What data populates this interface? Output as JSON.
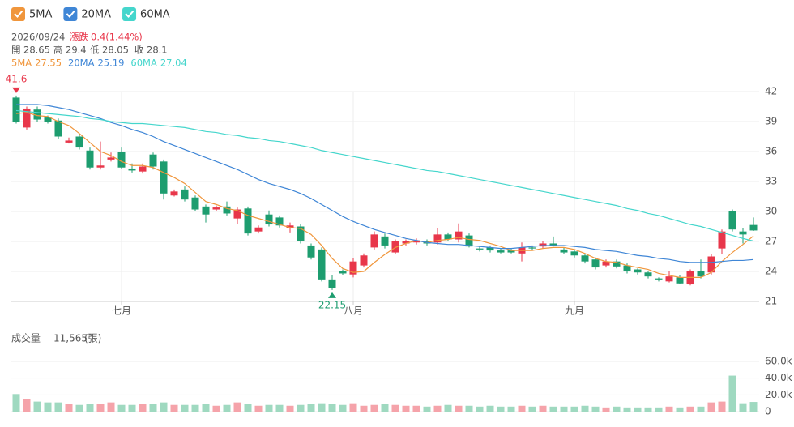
{
  "info": {
    "date": "2026/09/24",
    "change_label": "漲跌",
    "change": "0.4(1.44%)",
    "open_label": "開",
    "high_label": "高",
    "low_label": "低",
    "close_label": "收",
    "volume_label": "成交量",
    "volume": "11,565",
    "volume_unit": "(張)"
  },
  "chart_data": [
    {
      "type": "candlestick",
      "categories": [
        null,
        null,
        null,
        null,
        null,
        null,
        null,
        null,
        null,
        null,
        "七月",
        null,
        null,
        null,
        null,
        null,
        null,
        null,
        null,
        null,
        null,
        null,
        null,
        null,
        null,
        null,
        null,
        null,
        null,
        null,
        null,
        null,
        "八月",
        null,
        null,
        null,
        null,
        null,
        null,
        null,
        null,
        null,
        null,
        null,
        null,
        null,
        null,
        null,
        null,
        null,
        null,
        null,
        null,
        "九月",
        null,
        null,
        null,
        null,
        null,
        null,
        null,
        null,
        null,
        null,
        null,
        null,
        null,
        null,
        null,
        null,
        null
      ],
      "open": [
        41.4,
        38.4,
        40.2,
        39.4,
        39.1,
        36.9,
        37.5,
        36.1,
        34.4,
        35.2,
        36.0,
        34.3,
        34.0,
        35.7,
        35.0,
        31.6,
        32.2,
        31.4,
        30.5,
        30.2,
        30.5,
        29.3,
        30.3,
        28.0,
        29.7,
        29.4,
        28.3,
        28.5,
        26.6,
        26.2,
        23.2,
        24.0,
        23.7,
        24.6,
        26.4,
        27.5,
        25.9,
        26.8,
        26.9,
        27.0,
        26.9,
        27.7,
        27.2,
        27.6,
        26.3,
        26.4,
        26.1,
        26.1,
        25.8,
        26.4,
        26.5,
        26.8,
        26.2,
        26.0,
        25.6,
        25.2,
        24.6,
        25.0,
        24.6,
        24.2,
        23.9,
        23.3,
        23.0,
        23.4,
        22.7,
        24.0,
        23.9,
        26.3,
        30.0,
        28.0,
        28.65
      ],
      "high": [
        41.6,
        40.5,
        40.5,
        39.6,
        39.3,
        37.4,
        37.8,
        36.4,
        37.0,
        35.9,
        36.4,
        34.8,
        34.8,
        35.9,
        35.2,
        32.2,
        32.5,
        31.6,
        30.7,
        30.6,
        31.0,
        30.4,
        30.5,
        28.6,
        30.1,
        29.6,
        28.9,
        28.7,
        26.8,
        26.4,
        23.6,
        24.2,
        25.3,
        25.8,
        28.0,
        27.8,
        27.2,
        27.2,
        27.3,
        27.2,
        28.3,
        27.9,
        28.8,
        27.8,
        26.5,
        26.6,
        26.3,
        26.3,
        26.9,
        26.6,
        27.0,
        27.5,
        26.4,
        26.2,
        25.8,
        25.4,
        25.2,
        25.2,
        24.8,
        24.3,
        24.0,
        23.4,
        24.0,
        23.6,
        24.2,
        25.2,
        25.7,
        28.2,
        30.2,
        28.3,
        29.4
      ],
      "low": [
        38.8,
        38.2,
        39.0,
        38.8,
        37.3,
        36.8,
        36.2,
        34.2,
        34.2,
        35.0,
        34.3,
        33.9,
        33.8,
        34.2,
        31.2,
        31.5,
        31.0,
        30.0,
        28.9,
        30.0,
        29.6,
        28.7,
        27.6,
        27.8,
        28.5,
        28.4,
        27.9,
        26.8,
        25.2,
        23.0,
        22.15,
        23.6,
        23.4,
        24.4,
        26.2,
        26.3,
        25.7,
        26.6,
        26.7,
        26.6,
        26.7,
        27.0,
        26.9,
        26.4,
        26.0,
        25.9,
        25.8,
        25.8,
        25.0,
        26.1,
        26.3,
        26.5,
        25.7,
        25.4,
        24.8,
        24.2,
        24.4,
        24.3,
        23.8,
        23.7,
        23.3,
        23.0,
        22.9,
        22.7,
        22.6,
        23.3,
        23.7,
        25.7,
        28.0,
        26.8,
        28.05
      ],
      "close": [
        39.0,
        40.3,
        39.2,
        39.0,
        37.5,
        37.1,
        36.4,
        34.4,
        34.6,
        35.4,
        34.4,
        34.1,
        34.5,
        34.5,
        31.8,
        32.0,
        31.2,
        30.2,
        29.7,
        30.4,
        29.8,
        30.2,
        27.8,
        28.4,
        28.7,
        28.6,
        28.6,
        27.0,
        25.4,
        23.2,
        22.3,
        23.8,
        25.0,
        25.6,
        27.7,
        26.6,
        27.0,
        27.0,
        27.1,
        26.8,
        27.7,
        27.2,
        28.0,
        26.5,
        26.2,
        26.1,
        25.9,
        25.9,
        26.4,
        26.3,
        26.8,
        26.6,
        25.9,
        25.6,
        25.0,
        24.4,
        25.0,
        24.5,
        24.0,
        23.9,
        23.5,
        23.2,
        23.5,
        22.8,
        24.0,
        23.5,
        25.5,
        28.0,
        28.2,
        27.7,
        28.1
      ],
      "up_color": "#e8364a",
      "down_color": "#1d9d6f",
      "series": [
        {
          "name": "5MA",
          "color": "#f0963c",
          "values": [
            39.8,
            39.9,
            39.6,
            39.5,
            39.0,
            38.6,
            37.8,
            36.9,
            36.0,
            35.6,
            35.0,
            34.6,
            34.6,
            34.4,
            33.9,
            33.4,
            32.8,
            31.9,
            31.0,
            30.7,
            30.3,
            30.1,
            29.6,
            29.3,
            29.0,
            28.7,
            28.4,
            28.3,
            27.7,
            26.6,
            25.3,
            24.3,
            23.9,
            24.0,
            24.9,
            25.7,
            26.4,
            26.8,
            27.1,
            26.9,
            27.1,
            27.2,
            27.4,
            27.2,
            27.1,
            26.8,
            26.5,
            26.1,
            26.1,
            26.1,
            26.3,
            26.4,
            26.4,
            26.2,
            25.8,
            25.3,
            25.0,
            24.9,
            24.6,
            24.4,
            24.2,
            23.8,
            23.6,
            23.4,
            23.4,
            23.4,
            23.9,
            25.0,
            25.9,
            26.7,
            27.55
          ]
        },
        {
          "name": "20MA",
          "color": "#3f86d6",
          "values": [
            40.7,
            40.7,
            40.7,
            40.6,
            40.4,
            40.2,
            39.9,
            39.6,
            39.3,
            38.9,
            38.6,
            38.2,
            37.9,
            37.5,
            37.0,
            36.6,
            36.2,
            35.8,
            35.4,
            35.0,
            34.6,
            34.2,
            33.7,
            33.2,
            32.8,
            32.5,
            32.2,
            31.8,
            31.3,
            30.7,
            30.1,
            29.5,
            29.0,
            28.6,
            28.2,
            27.9,
            27.6,
            27.3,
            27.1,
            26.9,
            26.8,
            26.7,
            26.7,
            26.6,
            26.5,
            26.4,
            26.3,
            26.3,
            26.4,
            26.5,
            26.6,
            26.6,
            26.6,
            26.5,
            26.4,
            26.2,
            26.1,
            26.0,
            25.8,
            25.6,
            25.5,
            25.3,
            25.2,
            25.0,
            24.9,
            24.9,
            24.9,
            25.0,
            25.1,
            25.1,
            25.19
          ]
        },
        {
          "name": "60MA",
          "color": "#45d6cc",
          "values": [
            40.1,
            40.0,
            39.9,
            39.8,
            39.7,
            39.6,
            39.5,
            39.3,
            39.2,
            39.0,
            38.9,
            38.8,
            38.8,
            38.7,
            38.6,
            38.5,
            38.4,
            38.2,
            38.0,
            37.9,
            37.7,
            37.6,
            37.4,
            37.3,
            37.1,
            37.0,
            36.8,
            36.6,
            36.4,
            36.1,
            35.9,
            35.7,
            35.5,
            35.3,
            35.1,
            34.9,
            34.7,
            34.5,
            34.3,
            34.1,
            34.0,
            33.8,
            33.6,
            33.4,
            33.2,
            33.0,
            32.8,
            32.6,
            32.4,
            32.2,
            32.0,
            31.8,
            31.6,
            31.4,
            31.2,
            31.0,
            30.8,
            30.6,
            30.3,
            30.1,
            29.8,
            29.6,
            29.3,
            29.0,
            28.7,
            28.5,
            28.2,
            27.9,
            27.6,
            27.3,
            27.04
          ]
        }
      ],
      "ylim": [
        21,
        42
      ],
      "yticks": [
        21,
        24,
        27,
        30,
        33,
        36,
        39,
        42
      ],
      "grid": true
    },
    {
      "type": "bar",
      "up_color": "#f5a3aa",
      "down_color": "#9fd9c0",
      "values": [
        21000,
        15000,
        12000,
        11000,
        11000,
        9000,
        8000,
        9000,
        9000,
        11000,
        8000,
        8000,
        9000,
        9000,
        11000,
        8000,
        8000,
        8000,
        9000,
        7000,
        8000,
        11000,
        9000,
        7000,
        8000,
        8000,
        7000,
        8000,
        9000,
        10000,
        9000,
        8000,
        10000,
        7000,
        8000,
        9000,
        8000,
        7000,
        7000,
        6000,
        7000,
        8000,
        7000,
        7000,
        6000,
        7000,
        6000,
        6000,
        7000,
        6000,
        7000,
        6000,
        6000,
        6000,
        7000,
        6000,
        5000,
        6000,
        5000,
        5000,
        5000,
        5000,
        6000,
        5000,
        6000,
        6000,
        11000,
        12000,
        43000,
        10000,
        11565
      ],
      "ylim": [
        0,
        60000
      ],
      "yticks": [
        0,
        {
          "value": 20000,
          "label": "20.0k"
        },
        {
          "value": 40000,
          "label": "40.0k"
        },
        {
          "value": 60000,
          "label": "60.0k"
        }
      ],
      "grid": true
    }
  ]
}
